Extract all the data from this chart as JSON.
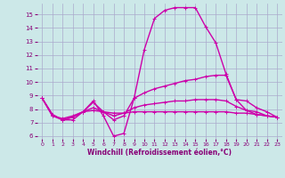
{
  "background_color": "#cce8e8",
  "grid_color": "#aaaacc",
  "line_color": "#cc00aa",
  "xlabel": "Windchill (Refroidissement éolien,°C)",
  "xlabel_color": "#880077",
  "tick_color": "#880077",
  "xlim": [
    -0.5,
    23.5
  ],
  "ylim": [
    5.8,
    15.8
  ],
  "yticks": [
    6,
    7,
    8,
    9,
    10,
    11,
    12,
    13,
    14,
    15
  ],
  "xticks": [
    0,
    1,
    2,
    3,
    4,
    5,
    6,
    7,
    8,
    9,
    10,
    11,
    12,
    13,
    14,
    15,
    16,
    17,
    18,
    19,
    20,
    21,
    22,
    23
  ],
  "series": [
    {
      "x": [
        0,
        1,
        2,
        3,
        4,
        5,
        6,
        7,
        8,
        9,
        10,
        11,
        12,
        13,
        14,
        15,
        16,
        17,
        18,
        19,
        20,
        21,
        22,
        23
      ],
      "y": [
        8.8,
        7.6,
        7.2,
        7.2,
        7.8,
        8.6,
        7.5,
        6.0,
        6.2,
        8.8,
        12.4,
        14.7,
        15.3,
        15.5,
        15.5,
        15.5,
        14.1,
        12.9,
        10.6,
        8.7,
        7.9,
        7.8,
        7.5,
        7.4
      ]
    },
    {
      "x": [
        0,
        1,
        2,
        3,
        4,
        5,
        6,
        7,
        8,
        9,
        10,
        11,
        12,
        13,
        14,
        15,
        16,
        17,
        18,
        19,
        20,
        21,
        22,
        23
      ],
      "y": [
        8.8,
        7.6,
        7.2,
        7.4,
        7.8,
        8.5,
        7.8,
        7.2,
        7.5,
        8.8,
        9.2,
        9.5,
        9.7,
        9.9,
        10.1,
        10.2,
        10.4,
        10.5,
        10.5,
        8.7,
        8.6,
        8.1,
        7.8,
        7.4
      ]
    },
    {
      "x": [
        0,
        1,
        2,
        3,
        4,
        5,
        6,
        7,
        8,
        9,
        10,
        11,
        12,
        13,
        14,
        15,
        16,
        17,
        18,
        19,
        20,
        21,
        22,
        23
      ],
      "y": [
        8.8,
        7.5,
        7.2,
        7.4,
        7.8,
        8.1,
        7.8,
        7.5,
        7.7,
        8.1,
        8.3,
        8.4,
        8.5,
        8.6,
        8.6,
        8.7,
        8.7,
        8.7,
        8.6,
        8.2,
        7.9,
        7.6,
        7.5,
        7.4
      ]
    },
    {
      "x": [
        0,
        1,
        2,
        3,
        4,
        5,
        6,
        7,
        8,
        9,
        10,
        11,
        12,
        13,
        14,
        15,
        16,
        17,
        18,
        19,
        20,
        21,
        22,
        23
      ],
      "y": [
        8.8,
        7.5,
        7.3,
        7.5,
        7.8,
        7.9,
        7.8,
        7.7,
        7.7,
        7.8,
        7.8,
        7.8,
        7.8,
        7.8,
        7.8,
        7.8,
        7.8,
        7.8,
        7.8,
        7.7,
        7.7,
        7.6,
        7.5,
        7.4
      ]
    }
  ]
}
